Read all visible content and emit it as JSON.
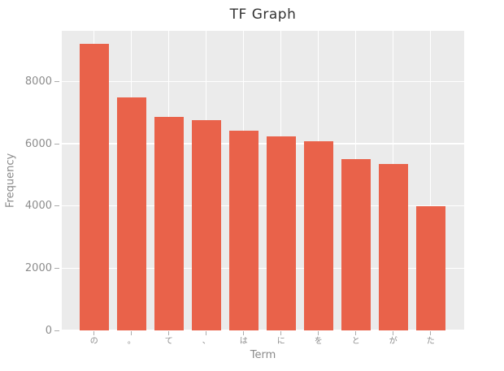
{
  "chart_data": {
    "type": "bar",
    "title": "TF Graph",
    "xlabel": "Term",
    "ylabel": "Frequency",
    "categories": [
      "の",
      "。",
      "て",
      "、",
      "は",
      "に",
      "を",
      "と",
      "が",
      "た"
    ],
    "values": [
      9200,
      7490,
      6870,
      6760,
      6410,
      6250,
      6070,
      5510,
      5350,
      4000
    ],
    "yticks": [
      0,
      2000,
      4000,
      6000,
      8000
    ],
    "ylim": [
      0,
      9630
    ],
    "grid": true,
    "legend_position": "none",
    "style": {
      "bar_color": "#E9624A",
      "plot_background": "#EBEBEB",
      "grid_color": "#FFFFFF",
      "title_color": "#333333",
      "tick_label_color": "#8C8C8C",
      "axis_label_color": "#8A8A8A",
      "tick_mark_color": "#ABABAB"
    }
  }
}
